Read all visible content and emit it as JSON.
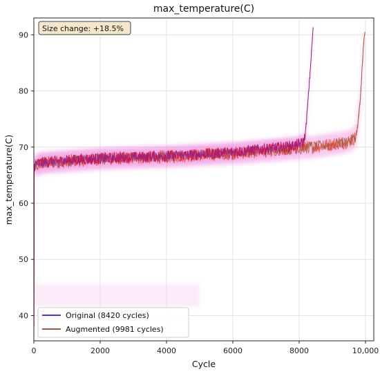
{
  "chart_data": {
    "type": "line",
    "title": "max_temperature(C)",
    "xlabel": "Cycle",
    "ylabel": "max_temperature(C)",
    "xlim": [
      0,
      10250
    ],
    "ylim": [
      35.5,
      93
    ],
    "xticks": [
      0,
      2000,
      4000,
      6000,
      8000,
      10000
    ],
    "xtick_labels": [
      "0",
      "2000",
      "4000",
      "6000",
      "8000",
      "10,000"
    ],
    "yticks": [
      40,
      50,
      60,
      70,
      80,
      90
    ],
    "ytick_labels": [
      "40",
      "50",
      "60",
      "70",
      "80",
      "90"
    ],
    "grid": true,
    "annotation": "Size change: +18.5%",
    "legend_position": "lower-left",
    "series": [
      {
        "name": "Original (8420 cycles)",
        "color": "#5533dd",
        "x": [
          0,
          10,
          60,
          200,
          500,
          1000,
          1500,
          2000,
          2500,
          3000,
          3500,
          4000,
          4500,
          5000,
          5500,
          6000,
          6500,
          7000,
          7500,
          7800,
          8000,
          8100,
          8150,
          8200,
          8250,
          8300,
          8350,
          8400,
          8420
        ],
        "y": [
          38,
          66.5,
          67.0,
          67.2,
          67.4,
          67.6,
          67.8,
          68.0,
          68.1,
          68.2,
          68.3,
          68.4,
          68.5,
          68.7,
          68.9,
          69.1,
          69.4,
          69.7,
          70.0,
          70.2,
          70.5,
          70.8,
          71.2,
          73.0,
          77.0,
          81.0,
          85.0,
          89.5,
          91.0
        ]
      },
      {
        "name": "Augmented (9981 cycles)",
        "color": "#9e5a3c",
        "x": [
          0,
          10,
          60,
          300,
          1000,
          2000,
          3000,
          4000,
          5000,
          6000,
          7000,
          8000,
          8500,
          9000,
          9400,
          9600,
          9700,
          9750,
          9800,
          9850,
          9900,
          9950,
          9981
        ],
        "y": [
          38,
          66.3,
          66.8,
          67.2,
          67.5,
          67.9,
          68.1,
          68.3,
          68.6,
          68.9,
          69.3,
          69.8,
          70.1,
          70.5,
          70.9,
          71.3,
          71.8,
          73.0,
          76.0,
          79.0,
          84.0,
          89.0,
          90.5
        ]
      }
    ]
  }
}
